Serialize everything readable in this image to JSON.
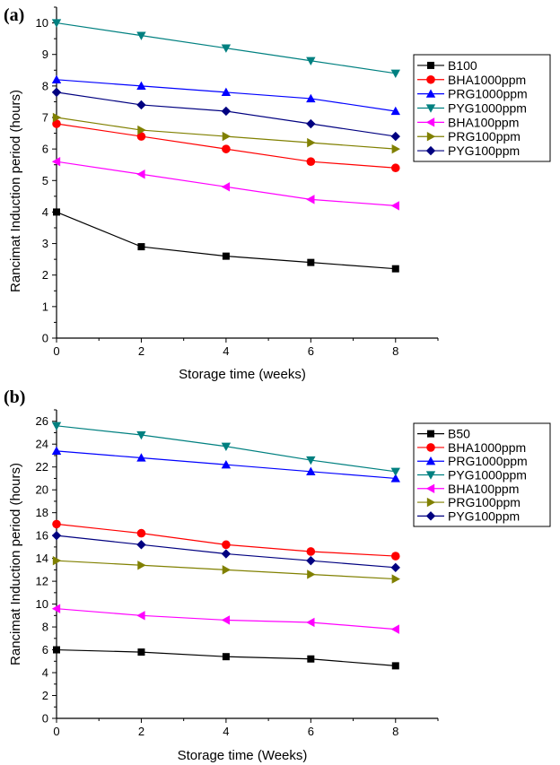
{
  "chart_data": [
    {
      "type": "line",
      "panel_label": "(a)",
      "title": "",
      "xlabel": "Storage time (weeks)",
      "ylabel": "Rancimat Induction period (hours)",
      "xlim": [
        0,
        9
      ],
      "ylim": [
        0,
        10.5
      ],
      "x_ticks": [
        0,
        2,
        4,
        6,
        8
      ],
      "y_ticks": [
        0,
        1,
        2,
        3,
        4,
        5,
        6,
        7,
        8,
        9,
        10
      ],
      "x": [
        0,
        2,
        4,
        6,
        8
      ],
      "grid": false,
      "legend_position": "top-right",
      "series": [
        {
          "name": "B100",
          "color": "#000000",
          "marker": "square",
          "values": [
            4.0,
            2.9,
            2.6,
            2.4,
            2.2
          ]
        },
        {
          "name": "BHA1000ppm",
          "color": "#ff0000",
          "marker": "circle",
          "values": [
            6.8,
            6.4,
            6.0,
            5.6,
            5.4
          ]
        },
        {
          "name": "PRG1000ppm",
          "color": "#0000ff",
          "marker": "triangle-up",
          "values": [
            8.2,
            8.0,
            7.8,
            7.6,
            7.2
          ]
        },
        {
          "name": "PYG1000ppm",
          "color": "#008080",
          "marker": "triangle-down",
          "values": [
            10.0,
            9.6,
            9.2,
            8.8,
            8.4
          ]
        },
        {
          "name": "BHA100ppm",
          "color": "#ff00ff",
          "marker": "triangle-left",
          "values": [
            5.6,
            5.2,
            4.8,
            4.4,
            4.2
          ]
        },
        {
          "name": "PRG100ppm",
          "color": "#808000",
          "marker": "triangle-right",
          "values": [
            7.0,
            6.6,
            6.4,
            6.2,
            6.0
          ]
        },
        {
          "name": "PYG100ppm",
          "color": "#000080",
          "marker": "diamond",
          "values": [
            7.8,
            7.4,
            7.2,
            6.8,
            6.4
          ]
        }
      ]
    },
    {
      "type": "line",
      "panel_label": "(b)",
      "title": "",
      "xlabel": "Storage time (Weeks)",
      "ylabel": "Rancimat Induction period (hours)",
      "xlim": [
        0,
        9
      ],
      "ylim": [
        0,
        27
      ],
      "x_ticks": [
        0,
        2,
        4,
        6,
        8
      ],
      "y_ticks": [
        0,
        2,
        4,
        6,
        8,
        10,
        12,
        14,
        16,
        18,
        20,
        22,
        24,
        26
      ],
      "x": [
        0,
        2,
        4,
        6,
        8
      ],
      "grid": false,
      "legend_position": "top-right",
      "series": [
        {
          "name": "B50",
          "color": "#000000",
          "marker": "square",
          "values": [
            6.0,
            5.8,
            5.4,
            5.2,
            4.6
          ]
        },
        {
          "name": "BHA1000ppm",
          "color": "#ff0000",
          "marker": "circle",
          "values": [
            17.0,
            16.2,
            15.2,
            14.6,
            14.2
          ]
        },
        {
          "name": "PRG1000ppm",
          "color": "#0000ff",
          "marker": "triangle-up",
          "values": [
            23.4,
            22.8,
            22.2,
            21.6,
            21.0
          ]
        },
        {
          "name": "PYG1000ppm",
          "color": "#008080",
          "marker": "triangle-down",
          "values": [
            25.6,
            24.8,
            23.8,
            22.6,
            21.6
          ]
        },
        {
          "name": "BHA100ppm",
          "color": "#ff00ff",
          "marker": "triangle-left",
          "values": [
            9.6,
            9.0,
            8.6,
            8.4,
            7.8
          ]
        },
        {
          "name": "PRG100ppm",
          "color": "#808000",
          "marker": "triangle-right",
          "values": [
            13.8,
            13.4,
            13.0,
            12.6,
            12.2
          ]
        },
        {
          "name": "PYG100ppm",
          "color": "#000080",
          "marker": "diamond",
          "values": [
            16.0,
            15.2,
            14.4,
            13.8,
            13.2
          ]
        }
      ]
    }
  ]
}
